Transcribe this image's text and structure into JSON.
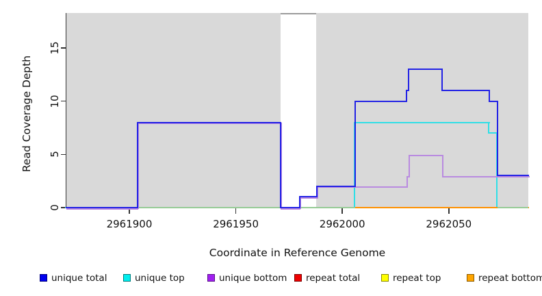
{
  "chart_data": {
    "type": "line",
    "subtype": "step-coverage",
    "title": "",
    "xlabel": "Coordinate in Reference Genome",
    "ylabel": "Read Coverage Depth",
    "xlim": [
      2961870.3,
      2962087.3
    ],
    "ylim": [
      0,
      18.3
    ],
    "x_ticks": [
      2961900,
      2961950,
      2962000,
      2962050
    ],
    "y_ticks": [
      0,
      5,
      10,
      15
    ],
    "grid": false,
    "legend_position": "bottom",
    "plot_bg_color": "#d9d9d9",
    "bg_regions": [
      [
        2961870.3,
        2961971
      ],
      [
        2961987.7,
        2962087.3
      ]
    ],
    "white_gap": [
      2961971,
      2961987.7
    ],
    "gap_top_line": {
      "x": [
        2961971,
        2961987.7
      ],
      "color": "#9a9a9a"
    },
    "x_end": 2962087.3,
    "series": [
      {
        "name": "unique total",
        "color": "#2222e5",
        "points": [
          [
            2961870.3,
            0
          ],
          [
            2961904,
            8
          ],
          [
            2961971,
            0
          ],
          [
            2961980,
            1
          ],
          [
            2961988,
            2
          ],
          [
            2962006,
            10
          ],
          [
            2962030,
            11
          ],
          [
            2962031,
            13
          ],
          [
            2962047,
            11
          ],
          [
            2962069,
            10
          ],
          [
            2962073,
            3
          ]
        ]
      },
      {
        "name": "unique top",
        "color": "#2fdfe6",
        "points": [
          [
            2961870.3,
            0
          ],
          [
            2962006,
            8
          ],
          [
            2962069,
            7
          ],
          [
            2962073,
            0
          ]
        ]
      },
      {
        "name": "unique bottom",
        "color": "#b98ae0",
        "points": [
          [
            2961870.3,
            0
          ],
          [
            2961904,
            8
          ],
          [
            2961971,
            0
          ],
          [
            2961980,
            1
          ],
          [
            2961988,
            2
          ],
          [
            2962030,
            3
          ],
          [
            2962031,
            5
          ],
          [
            2962047,
            3
          ]
        ]
      },
      {
        "name": "repeat total",
        "color": "#ee0000",
        "points": [
          [
            2961870.3,
            0
          ]
        ]
      },
      {
        "name": "repeat top",
        "color": "#f5f500",
        "points": [
          [
            2961870.3,
            0
          ]
        ]
      },
      {
        "name": "repeat bottom",
        "color": "#ff9100",
        "points": [
          [
            2961870.3,
            0
          ]
        ]
      }
    ],
    "baseline_overlays": [
      {
        "name": "zero-coverage-blend",
        "color": "#96cb96",
        "x": [
          2961904,
          2962087.3
        ]
      },
      {
        "name": "repeat-bottom-zero",
        "color": "#ff9100",
        "x": [
          2962006,
          2962073
        ]
      }
    ]
  },
  "legend": {
    "items": [
      {
        "label": "unique total",
        "fill": "#0000ee",
        "border": "#000080"
      },
      {
        "label": "unique top",
        "fill": "#00eeee",
        "border": "#007a7a"
      },
      {
        "label": "unique bottom",
        "fill": "#a020f0",
        "border": "#5a0f8a"
      },
      {
        "label": "repeat total",
        "fill": "#ee0000",
        "border": "#7a0000"
      },
      {
        "label": "repeat top",
        "fill": "#ffff00",
        "border": "#8a8a00"
      },
      {
        "label": "repeat bottom",
        "fill": "#ffa500",
        "border": "#8a5a00"
      }
    ]
  }
}
